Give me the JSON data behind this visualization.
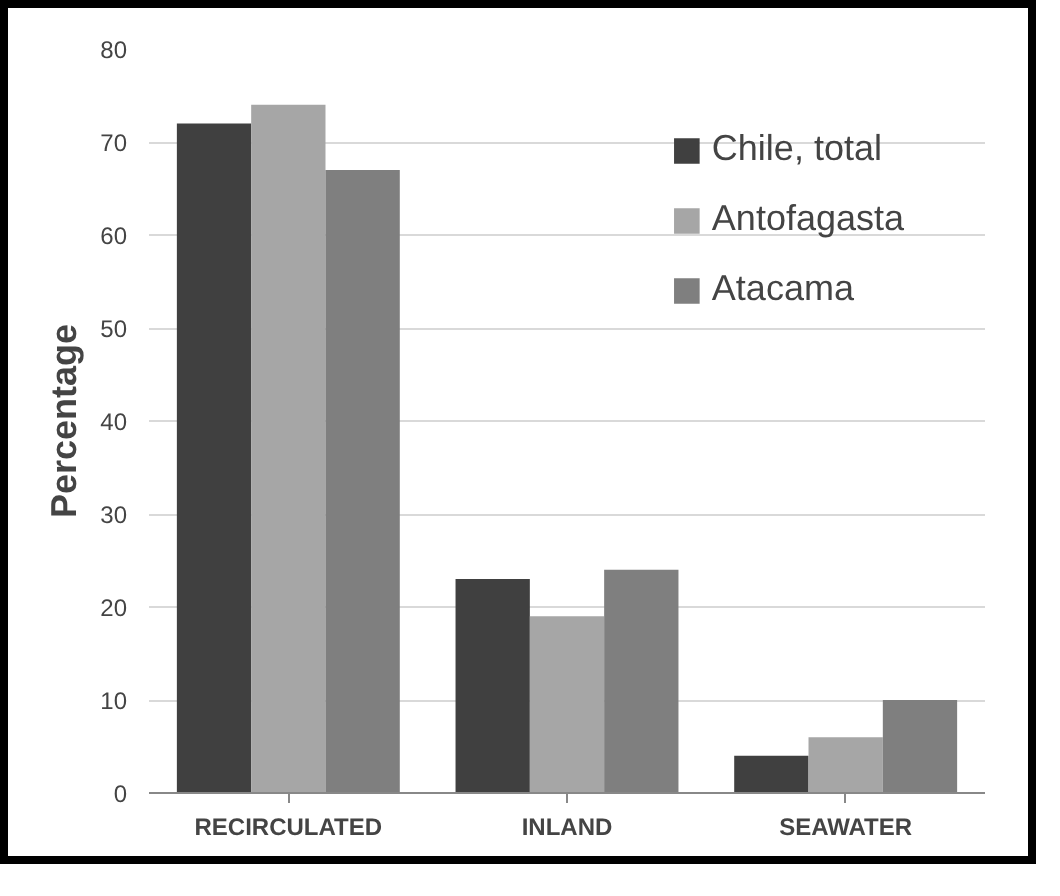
{
  "chart_data": {
    "type": "bar",
    "ylabel": "Percentage",
    "categories": [
      "RECIRCULATED",
      "INLAND",
      "SEAWATER"
    ],
    "series": [
      {
        "name": "Chile, total",
        "color": "#404040",
        "values": [
          72,
          23,
          4
        ]
      },
      {
        "name": "Antofagasta",
        "color": "#a6a6a6",
        "values": [
          74,
          19,
          6
        ]
      },
      {
        "name": "Atacama",
        "color": "#7f7f7f",
        "values": [
          67,
          24,
          10
        ]
      }
    ],
    "ylim": [
      0,
      80
    ],
    "yticks": [
      0,
      10,
      20,
      30,
      40,
      50,
      60,
      70,
      80
    ],
    "grid": "y",
    "legend": "top right"
  }
}
